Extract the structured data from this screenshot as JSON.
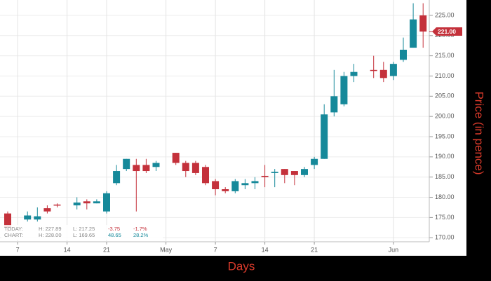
{
  "chart_data": {
    "type": "candlestick",
    "x_label": "Days",
    "y_label": "Price (in pence)",
    "categories": [
      null,
      "7",
      null,
      null,
      null,
      null,
      "14",
      null,
      null,
      null,
      "21",
      null,
      null,
      null,
      null,
      null,
      "May",
      null,
      null,
      null,
      null,
      "7",
      null,
      null,
      null,
      null,
      "14",
      null,
      null,
      null,
      null,
      "21",
      null,
      null,
      null,
      null,
      null,
      null,
      null,
      "Jun",
      null,
      null,
      null
    ],
    "open": [
      176,
      null,
      174.5,
      174.5,
      177.3,
      178.2,
      null,
      178,
      179,
      178.5,
      176.5,
      183.5,
      187,
      188,
      188,
      187.5,
      null,
      191,
      188.5,
      188.5,
      187.5,
      184,
      182,
      181.5,
      183,
      183.5,
      185.3,
      186,
      187,
      186.5,
      185.5,
      188,
      189.5,
      201,
      203,
      210,
      null,
      211.5,
      211.5,
      210,
      214,
      217,
      225
    ],
    "high": [
      176.5,
      null,
      176.5,
      177.5,
      178,
      178.5,
      null,
      180,
      179.5,
      179.5,
      181.5,
      188,
      189.5,
      189.5,
      189.5,
      189,
      null,
      191,
      189,
      189,
      188,
      184.5,
      182.5,
      184.5,
      184.5,
      185,
      188,
      187,
      187,
      186.5,
      187.5,
      190,
      203,
      211.5,
      211,
      213,
      null,
      215,
      213.5,
      213.5,
      219.5,
      228,
      228
    ],
    "low": [
      171.5,
      null,
      174,
      174,
      176,
      177.5,
      null,
      177,
      177,
      178.5,
      176,
      183,
      186.5,
      176.5,
      186,
      186.5,
      null,
      188,
      185,
      185.5,
      183,
      180.5,
      181,
      181,
      182,
      182,
      182.5,
      182.5,
      183.5,
      183,
      185,
      187,
      189.5,
      200,
      202.5,
      208.5,
      null,
      209.5,
      208.5,
      209,
      213.5,
      217,
      217
    ],
    "close": [
      172.5,
      null,
      175.5,
      175.3,
      176.5,
      178,
      null,
      178.7,
      178.5,
      179,
      181,
      186.5,
      189.5,
      186.5,
      186.5,
      188.5,
      null,
      188.5,
      186.5,
      186,
      183.5,
      182,
      181.5,
      184,
      183.5,
      184,
      185,
      186.3,
      185.5,
      185.5,
      187,
      189.5,
      200.5,
      205,
      210,
      211,
      null,
      211.3,
      209.5,
      213,
      216.5,
      224,
      221
    ],
    "up_color": "#16899a",
    "down_color": "#c4313b",
    "ylim": [
      169,
      228.8
    ],
    "yticks": [
      {
        "value": 170,
        "label": "170.00"
      },
      {
        "value": 175,
        "label": "175.00"
      },
      {
        "value": 180,
        "label": "180.00"
      },
      {
        "value": 185,
        "label": "185.00"
      },
      {
        "value": 190,
        "label": "190.00"
      },
      {
        "value": 195,
        "label": "195.00"
      },
      {
        "value": 200,
        "label": "200.00"
      },
      {
        "value": 205,
        "label": "205.00"
      },
      {
        "value": 210,
        "label": "210.00"
      },
      {
        "value": 215,
        "label": "215.00"
      },
      {
        "value": 220,
        "label": "220.00"
      },
      {
        "value": 225,
        "label": "225.00"
      }
    ],
    "grid": true,
    "last_price": {
      "value": 221,
      "label": "221.00"
    },
    "info": {
      "rows": [
        [
          "TODAY:",
          "H: 227.89",
          "L: 217.25",
          "-3.75",
          "-1.7%"
        ],
        [
          "CHART:",
          "H: 228.00",
          "L: 169.65",
          "48.65",
          "28.2%"
        ]
      ]
    }
  }
}
